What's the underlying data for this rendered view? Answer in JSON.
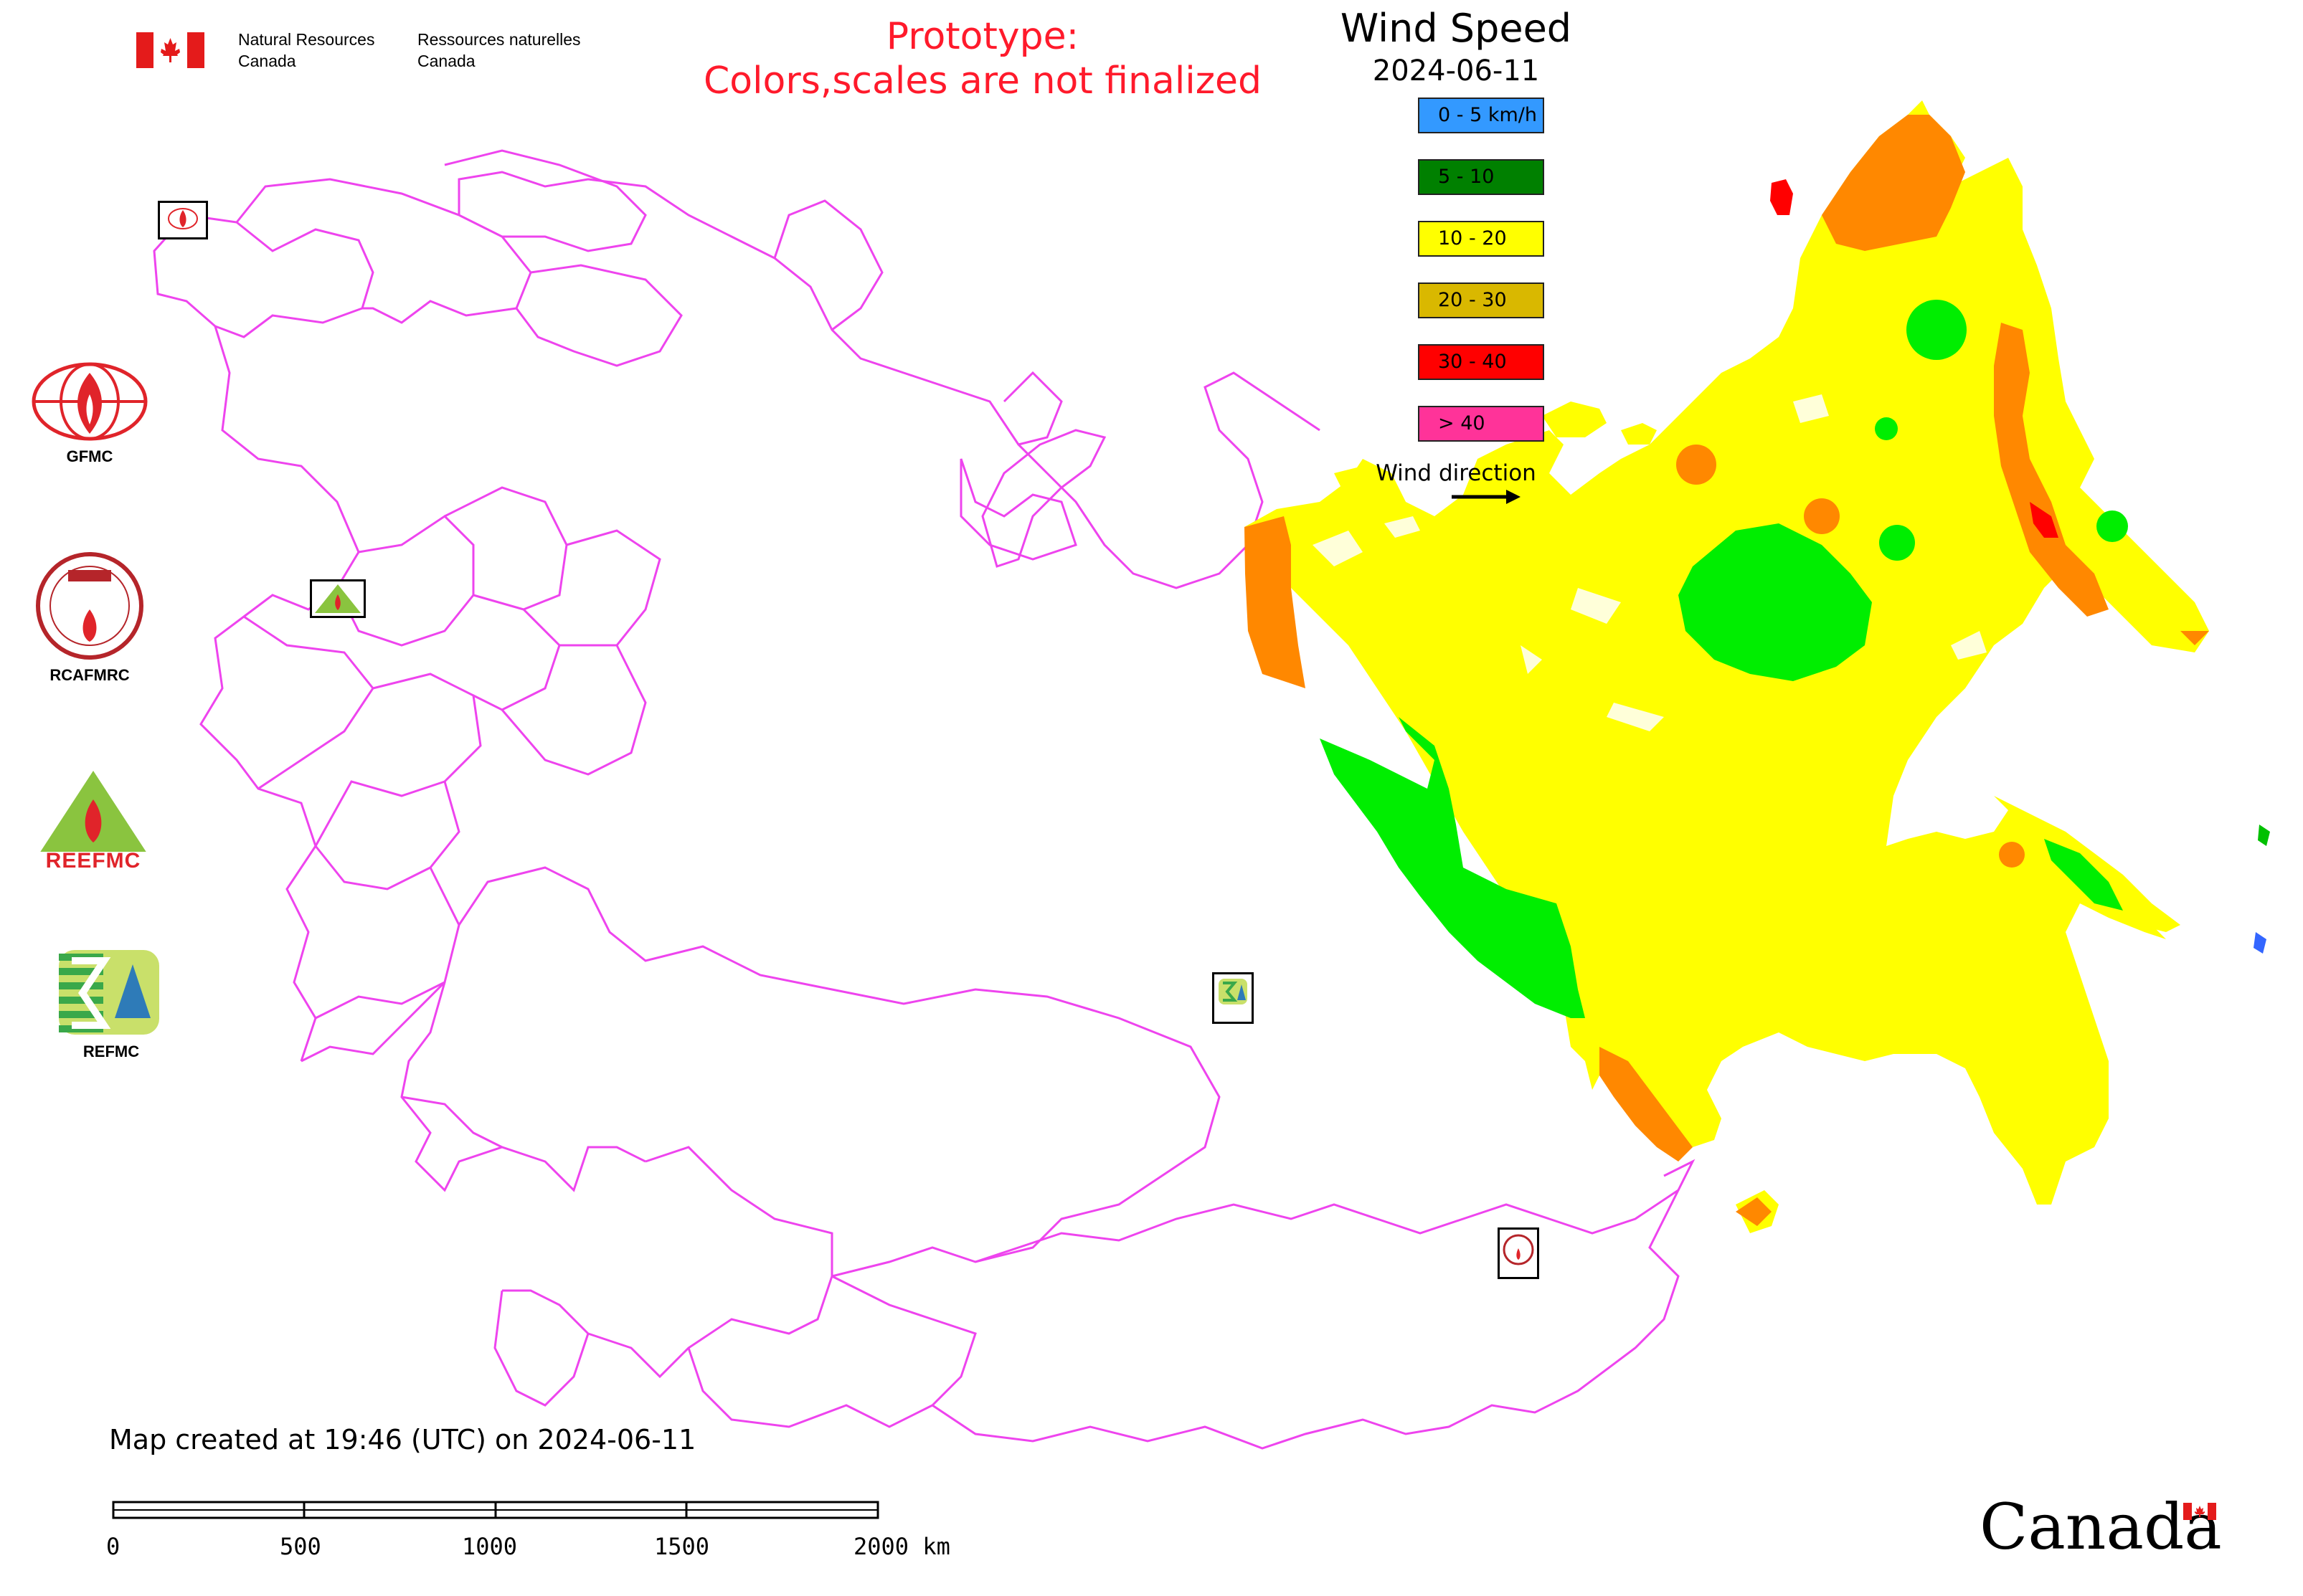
{
  "header": {
    "org_en_line1": "Natural Resources",
    "org_en_line2": "Canada",
    "org_fr_line1": "Ressources naturelles",
    "org_fr_line2": "Canada",
    "prototype_line1": "Prototype:",
    "prototype_line2": "Colors,scales are not finalized"
  },
  "legend": {
    "title": "Wind Speed",
    "date": "2024-06-11",
    "items": [
      {
        "label": "0 - 5 km/h",
        "color": "#3399ff"
      },
      {
        "label": "5 - 10",
        "color": "#008000"
      },
      {
        "label": "10 - 20",
        "color": "#ffff00"
      },
      {
        "label": "20 - 30",
        "color": "#d9b800"
      },
      {
        "label": "30 - 40",
        "color": "#ff0000"
      },
      {
        "label": "> 40",
        "color": "#ff3399"
      }
    ],
    "wind_direction_label": "Wind direction"
  },
  "logos": {
    "gfmc": "GFMC",
    "rcafmrc": "RCAFMRC",
    "reefmc": "REEFMC",
    "refmc": "REFMC"
  },
  "footer": {
    "created": "Map created at 19:46 (UTC) on 2024-06-11",
    "scale_labels": [
      "0",
      "500",
      "1000",
      "1500",
      "2000 km"
    ],
    "wordmark": "Canada"
  },
  "map_colors": {
    "border": "#ee44ee",
    "yellow": "#ffff00",
    "orange": "#ff8800",
    "green": "#00ee00",
    "red": "#ff0000"
  }
}
